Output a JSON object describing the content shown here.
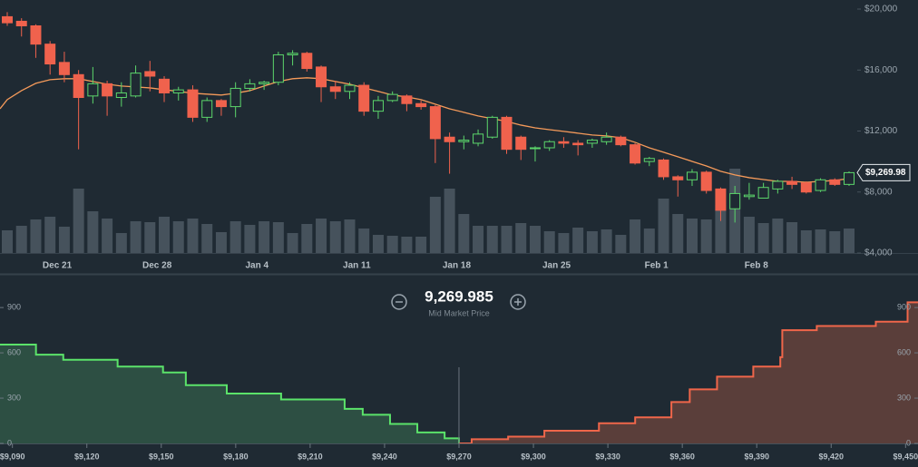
{
  "chart_data": [
    {
      "type": "candlestick",
      "categories": [
        null,
        null,
        null,
        null,
        "Dec 21",
        null,
        null,
        null,
        null,
        null,
        null,
        "Dec 28",
        null,
        null,
        null,
        null,
        null,
        null,
        "Jan 4",
        null,
        null,
        null,
        null,
        null,
        null,
        "Jan 11",
        null,
        null,
        null,
        null,
        null,
        null,
        "Jan 18",
        null,
        null,
        null,
        null,
        null,
        null,
        "Jan 25",
        null,
        null,
        null,
        null,
        null,
        null,
        "Feb 1",
        null,
        null,
        null,
        null,
        null,
        null,
        "Feb 8",
        null,
        null,
        null,
        null,
        null,
        null
      ],
      "open": [
        19500,
        19200,
        18900,
        17700,
        16500,
        15700,
        14300,
        15100,
        14200,
        14300,
        15900,
        15400,
        14500,
        14700,
        12900,
        14000,
        13600,
        14800,
        15100,
        15200,
        17000,
        17100,
        16200,
        14900,
        14600,
        15000,
        13300,
        14000,
        14300,
        13800,
        13600,
        11600,
        11300,
        11200,
        11600,
        12900,
        11600,
        10900,
        10900,
        11300,
        11200,
        11200,
        11300,
        11600,
        11100,
        10000,
        10100,
        9000,
        8800,
        9300,
        8200,
        6900,
        7700,
        7600,
        8200,
        8700,
        8600,
        8100,
        8800,
        8500
      ],
      "high": [
        19800,
        19400,
        19000,
        17900,
        17200,
        16000,
        16200,
        15300,
        15200,
        16300,
        16600,
        15600,
        14900,
        15000,
        14200,
        14100,
        15200,
        15400,
        15300,
        17200,
        17300,
        17200,
        16300,
        15300,
        15200,
        15200,
        14300,
        14600,
        14400,
        14000,
        13700,
        11900,
        11700,
        12100,
        13000,
        13000,
        11700,
        11000,
        11400,
        11600,
        11400,
        11500,
        11900,
        11700,
        11200,
        10300,
        10200,
        9100,
        9500,
        9400,
        8300,
        8400,
        8600,
        8600,
        8800,
        9000,
        8700,
        8900,
        8900,
        9350
      ],
      "low": [
        18900,
        18200,
        16800,
        15700,
        15200,
        10800,
        13800,
        13000,
        13600,
        14200,
        14600,
        13900,
        14000,
        12600,
        12600,
        13000,
        12900,
        14600,
        14700,
        15000,
        16300,
        15900,
        13900,
        14100,
        14100,
        13000,
        12800,
        13900,
        13300,
        13400,
        9900,
        9200,
        10800,
        11000,
        11500,
        10500,
        10100,
        10000,
        10700,
        10900,
        10400,
        10900,
        11100,
        11000,
        9800,
        9700,
        8800,
        7700,
        8400,
        7900,
        6100,
        6000,
        7500,
        7600,
        7900,
        8200,
        7900,
        8000,
        8400,
        8400
      ],
      "close": [
        19100,
        18900,
        17700,
        16400,
        15700,
        14200,
        15100,
        14300,
        14500,
        15800,
        15600,
        14500,
        14700,
        12900,
        14000,
        13600,
        14800,
        15100,
        15200,
        17000,
        17100,
        16100,
        14900,
        14600,
        15000,
        13300,
        14000,
        14400,
        13800,
        13600,
        11500,
        11300,
        11400,
        11800,
        12900,
        10800,
        10800,
        10900,
        11300,
        11200,
        11100,
        11400,
        11600,
        11100,
        9900,
        10200,
        9000,
        8800,
        9300,
        8100,
        6800,
        7900,
        7800,
        8300,
        8700,
        8500,
        8000,
        8800,
        8500,
        9269.98
      ],
      "volume": [
        25,
        30,
        37,
        40,
        29,
        71,
        46,
        38,
        22,
        35,
        34,
        40,
        35,
        38,
        32,
        23,
        35,
        31,
        35,
        34,
        22,
        32,
        38,
        35,
        37,
        27,
        20,
        19,
        18,
        18,
        62,
        71,
        43,
        30,
        30,
        30,
        33,
        30,
        24,
        22,
        28,
        24,
        26,
        20,
        37,
        27,
        60,
        43,
        38,
        37,
        53,
        93,
        40,
        33,
        38,
        34,
        25,
        26,
        24,
        27
      ],
      "moving_average": [
        14060,
        14650,
        15130,
        15370,
        15430,
        15430,
        15250,
        15070,
        14950,
        14890,
        14830,
        14710,
        14600,
        14480,
        14420,
        14360,
        14480,
        14650,
        14950,
        15250,
        15430,
        15490,
        15430,
        15250,
        15070,
        14830,
        14600,
        14360,
        14240,
        14060,
        13760,
        13460,
        13230,
        12990,
        12810,
        12630,
        12390,
        12210,
        12090,
        11980,
        11860,
        11740,
        11680,
        11560,
        11260,
        10900,
        10610,
        10310,
        10010,
        9710,
        9360,
        9120,
        8940,
        8820,
        8700,
        8700,
        8640,
        8700,
        8760,
        8880
      ],
      "last_price": {
        "value": 9269.98,
        "label": "$9,269.98"
      },
      "ylim": [
        4000,
        20000
      ],
      "yticks": [
        {
          "value": 4000,
          "label": "$4,000"
        },
        {
          "value": 8000,
          "label": "$8,000"
        },
        {
          "value": 12000,
          "label": "$12,000"
        },
        {
          "value": 16000,
          "label": "$16,000"
        },
        {
          "value": 20000,
          "label": "$20,000"
        }
      ],
      "up_color": "#5cd66b",
      "down_color": "#f0624d",
      "ma_color": "#f59a5a",
      "volume_color": "#46525c"
    },
    {
      "type": "depth",
      "mid_price": {
        "value": 9269.985,
        "label": "9,269.985"
      },
      "mid_price_caption": "Mid Market Price",
      "bids": {
        "x": [
          9085,
          9099.5,
          9110.5,
          9132.4,
          9150.7,
          9159.9,
          9176.4,
          9198.3,
          9223.9,
          9231.2,
          9242.2,
          9253.2,
          9264.2
        ],
        "values": [
          655,
          588,
          554,
          509,
          470,
          386,
          330,
          291,
          229,
          190,
          129,
          73,
          34
        ],
        "color": "#5be36a",
        "fill": "#2d4f43"
      },
      "asks": {
        "x": [
          9275.1,
          9289.8,
          9304.4,
          9326.4,
          9341.0,
          9355.6,
          9363.0,
          9374.0,
          9388.6,
          9399.5,
          9400.3,
          9414.2,
          9438.0,
          9450.8
        ],
        "values": [
          28,
          45,
          84,
          134,
          173,
          274,
          358,
          442,
          509,
          571,
          750,
          778,
          806,
          935
        ],
        "color": "#f0664a",
        "fill": "#5a3e3a"
      },
      "xlim": [
        9085,
        9455
      ],
      "xticks": [
        {
          "value": 9090,
          "label": "$9,090"
        },
        {
          "value": 9120,
          "label": "$9,120"
        },
        {
          "value": 9150,
          "label": "$9,150"
        },
        {
          "value": 9180,
          "label": "$9,180"
        },
        {
          "value": 9210,
          "label": "$9,210"
        },
        {
          "value": 9240,
          "label": "$9,240"
        },
        {
          "value": 9270,
          "label": "$9,270"
        },
        {
          "value": 9300,
          "label": "$9,300"
        },
        {
          "value": 9330,
          "label": "$9,330"
        },
        {
          "value": 9360,
          "label": "$9,360"
        },
        {
          "value": 9390,
          "label": "$9,390"
        },
        {
          "value": 9420,
          "label": "$9,420"
        },
        {
          "value": 9450,
          "label": "$9,450"
        }
      ],
      "ylim": [
        0,
        1000
      ],
      "yticks": [
        0,
        300,
        600,
        900
      ]
    }
  ]
}
